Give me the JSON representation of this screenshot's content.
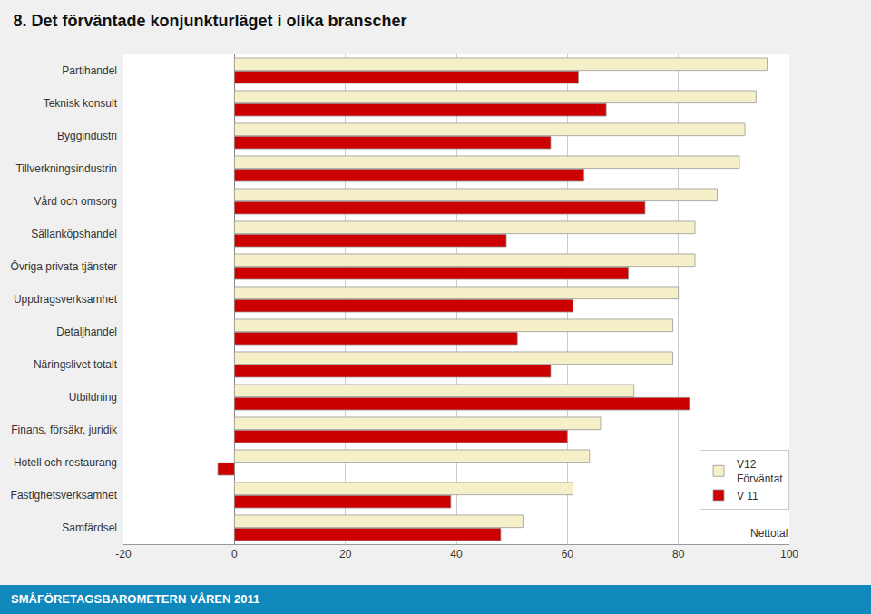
{
  "chart_data": {
    "type": "bar",
    "orientation": "horizontal",
    "title": "8. Det förväntade konjunkturläget i olika branscher",
    "categories": [
      "Partihandel",
      "Teknisk konsult",
      "Byggindustri",
      "Tillverkningsindustrin",
      "Vård och omsorg",
      "Sällanköpshandel",
      "Övriga privata tjänster",
      "Uppdragsverksamhet",
      "Detaljhandel",
      "Näringslivet totalt",
      "Utbildning",
      "Finans, försäkr, juridik",
      "Hotell och restaurang",
      "Fastighetsverksamhet",
      "Samfärdsel"
    ],
    "series": [
      {
        "name": "V12\nFörväntat",
        "color": "#F5F0C8",
        "values": [
          96,
          94,
          92,
          91,
          87,
          83,
          83,
          80,
          79,
          79,
          72,
          66,
          64,
          61,
          52
        ]
      },
      {
        "name": "V 11",
        "color": "#CC0000",
        "values": [
          62,
          67,
          57,
          63,
          74,
          49,
          71,
          61,
          51,
          57,
          82,
          60,
          -3,
          39,
          48
        ]
      }
    ],
    "xlim": [
      -20,
      100
    ],
    "xticks": [
      -20,
      0,
      20,
      40,
      60,
      80,
      100
    ],
    "grid": true,
    "legend": "lower right",
    "annotations": [
      "Nettotal",
      "SMÅFÖRETAGSBAROMETERN VÅREN 2011"
    ]
  }
}
